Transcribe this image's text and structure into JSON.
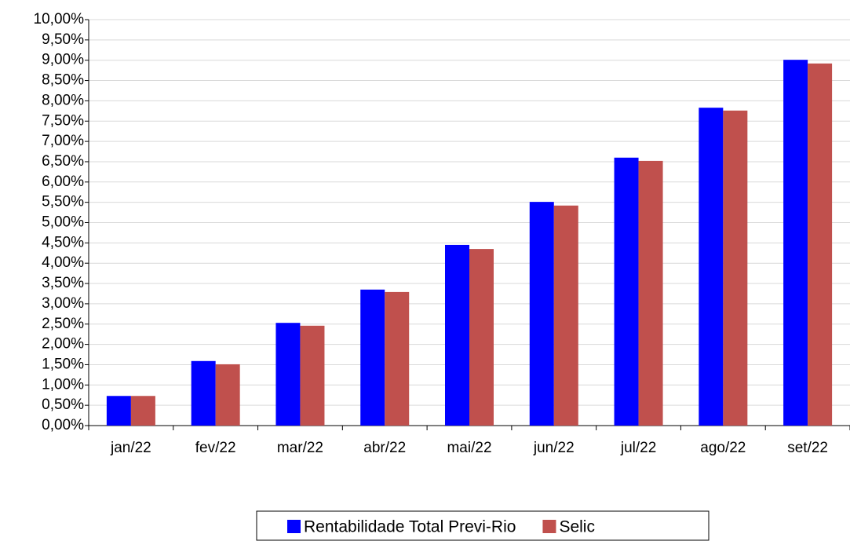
{
  "chart_data": {
    "type": "bar",
    "categories": [
      "jan/22",
      "fev/22",
      "mar/22",
      "abr/22",
      "mai/22",
      "jun/22",
      "jul/22",
      "ago/22",
      "set/22"
    ],
    "series": [
      {
        "name": "Rentabilidade Total Previ-Rio",
        "color": "#0000ff",
        "values": [
          0.73,
          1.59,
          2.53,
          3.35,
          4.45,
          5.51,
          6.6,
          7.83,
          9.01
        ]
      },
      {
        "name": "Selic",
        "color": "#c0504d",
        "values": [
          0.73,
          1.51,
          2.46,
          3.29,
          4.35,
          5.42,
          6.52,
          7.76,
          8.92
        ]
      }
    ],
    "ylim": [
      0,
      10
    ],
    "yticks": [
      {
        "value": 0,
        "label": "0,00%"
      },
      {
        "value": 0.5,
        "label": "0,50%"
      },
      {
        "value": 1,
        "label": "1,00%"
      },
      {
        "value": 1.5,
        "label": "1,50%"
      },
      {
        "value": 2,
        "label": "2,00%"
      },
      {
        "value": 2.5,
        "label": "2,50%"
      },
      {
        "value": 3,
        "label": "3,00%"
      },
      {
        "value": 3.5,
        "label": "3,50%"
      },
      {
        "value": 4,
        "label": "4,00%"
      },
      {
        "value": 4.5,
        "label": "4,50%"
      },
      {
        "value": 5,
        "label": "5,00%"
      },
      {
        "value": 5.5,
        "label": "5,50%"
      },
      {
        "value": 6,
        "label": "6,00%"
      },
      {
        "value": 6.5,
        "label": "6,50%"
      },
      {
        "value": 7,
        "label": "7,00%"
      },
      {
        "value": 7.5,
        "label": "7,50%"
      },
      {
        "value": 8,
        "label": "8,00%"
      },
      {
        "value": 8.5,
        "label": "8,50%"
      },
      {
        "value": 9,
        "label": "9,00%"
      },
      {
        "value": 9.5,
        "label": "9,50%"
      },
      {
        "value": 10,
        "label": "10,00%"
      }
    ],
    "grid": true,
    "legend": "bottom"
  }
}
